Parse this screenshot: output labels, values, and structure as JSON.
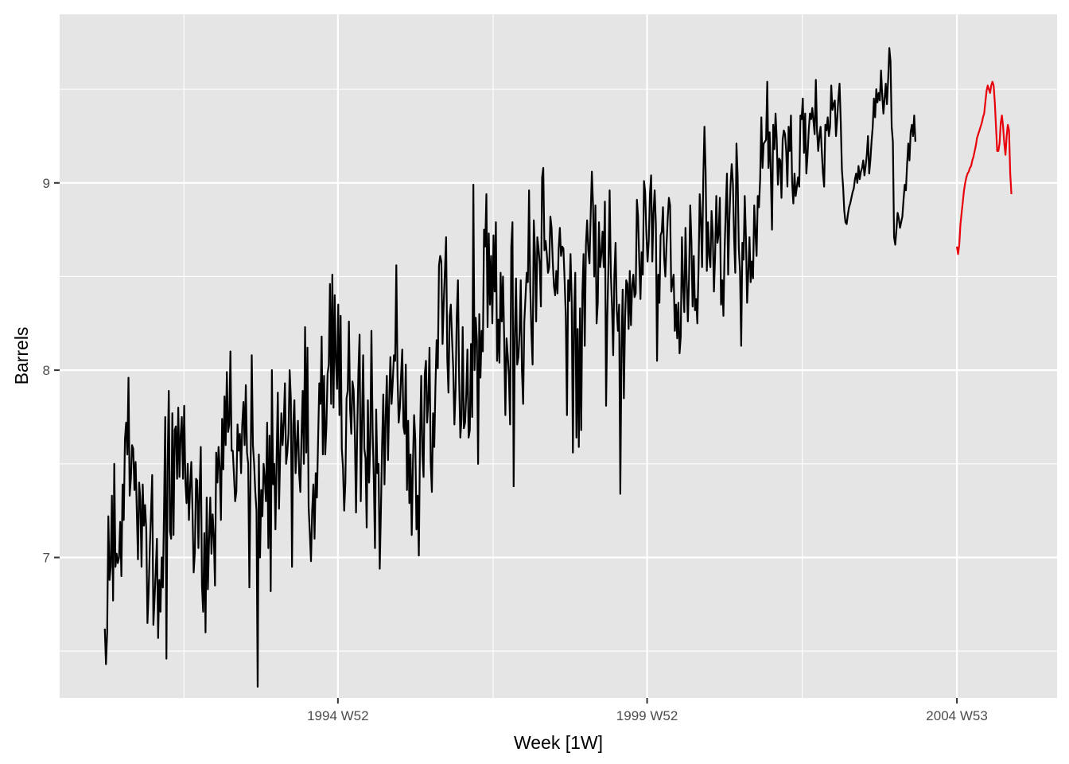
{
  "chart_data": {
    "type": "line",
    "title": "",
    "xlabel": "Week [1W]",
    "ylabel": "Barrels",
    "x_ticks": [
      {
        "label": "1994 W52",
        "year": 1994.99
      },
      {
        "label": "1999 W52",
        "year": 1999.99
      },
      {
        "label": "2004 W53",
        "year": 2005.0
      }
    ],
    "x_minor_ticks": [
      1992.5,
      1997.5,
      2002.5
    ],
    "y_ticks": [
      7,
      8,
      9
    ],
    "y_minor_ticks": [
      6.5,
      7.5,
      8.5,
      9.5
    ],
    "xlim": [
      1990.49,
      2006.62
    ],
    "ylim": [
      6.25,
      9.9
    ],
    "grid": true,
    "background": "#e5e5e5",
    "series": [
      {
        "color": "#000000",
        "x_start": 1991.22,
        "x_step": 0.019165,
        "values": [
          6.62,
          6.43,
          6.6,
          7.22,
          6.88,
          6.95,
          7.33,
          6.77,
          7.5,
          6.95,
          7.02,
          6.97,
          7.0,
          7.19,
          6.9,
          7.39,
          7.2,
          7.63,
          7.72,
          7.55,
          7.96,
          7.33,
          7.42,
          7.6,
          7.58,
          7.36,
          7.51,
          7.25,
          6.99,
          7.4,
          7.31,
          6.95,
          7.39,
          7.17,
          7.28,
          7.15,
          6.65,
          6.82,
          7.05,
          7.24,
          7.44,
          6.64,
          6.78,
          6.93,
          7.1,
          6.57,
          6.88,
          6.71,
          7.0,
          6.84,
          7.26,
          7.75,
          6.46,
          7.48,
          7.89,
          7.14,
          7.1,
          7.77,
          7.12,
          7.68,
          7.7,
          7.42,
          7.8,
          7.43,
          7.65,
          7.75,
          7.42,
          7.81,
          7.4,
          7.29,
          7.5,
          7.2,
          7.38,
          7.51,
          7.25,
          6.92,
          7.03,
          7.42,
          7.41,
          7.05,
          7.36,
          7.59,
          6.85,
          6.71,
          7.13,
          6.6,
          7.32,
          6.83,
          7.1,
          7.32,
          7.02,
          7.23,
          7.11,
          6.85,
          7.56,
          7.4,
          7.59,
          7.48,
          7.2,
          7.74,
          7.47,
          7.86,
          7.6,
          7.99,
          7.67,
          7.71,
          8.1,
          7.57,
          7.57,
          7.44,
          7.3,
          7.35,
          7.71,
          7.57,
          7.66,
          7.45,
          7.71,
          7.83,
          7.6,
          7.92,
          7.56,
          7.5,
          6.84,
          7.45,
          8.08,
          7.6,
          7.5,
          7.35,
          7.25,
          6.31,
          7.55,
          7.0,
          7.36,
          7.22,
          7.5,
          7.42,
          7.3,
          7.72,
          7.05,
          7.65,
          6.82,
          8.0,
          7.39,
          7.5,
          7.15,
          7.53,
          7.88,
          7.26,
          7.55,
          7.77,
          7.6,
          7.72,
          7.93,
          7.5,
          7.56,
          7.66,
          8.0,
          7.85,
          6.95,
          7.71,
          7.84,
          7.45,
          7.6,
          7.73,
          7.45,
          7.35,
          7.65,
          7.89,
          7.5,
          8.23,
          7.56,
          8.12,
          7.27,
          7.13,
          6.98,
          7.25,
          7.39,
          7.1,
          7.45,
          7.32,
          7.63,
          7.93,
          7.82,
          8.18,
          7.55,
          7.97,
          7.55,
          7.7,
          7.98,
          8.03,
          8.46,
          7.82,
          8.51,
          7.8,
          8.4,
          8.05,
          7.9,
          8.35,
          7.76,
          8.29,
          7.58,
          7.48,
          7.25,
          7.4,
          7.85,
          7.89,
          8.26,
          7.79,
          7.66,
          7.94,
          7.89,
          7.66,
          7.24,
          7.68,
          7.99,
          8.19,
          7.3,
          7.71,
          8.08,
          7.58,
          7.53,
          7.16,
          7.84,
          7.4,
          7.61,
          8.21,
          7.68,
          7.42,
          7.05,
          7.79,
          7.45,
          7.5,
          6.94,
          7.25,
          7.6,
          7.87,
          7.39,
          7.75,
          7.97,
          7.52,
          7.84,
          8.07,
          7.82,
          7.94,
          8.08,
          8.05,
          8.56,
          7.97,
          7.72,
          7.8,
          7.97,
          8.11,
          7.7,
          7.66,
          8.03,
          7.36,
          7.73,
          7.29,
          7.55,
          7.12,
          7.5,
          7.76,
          7.63,
          7.15,
          7.33,
          7.01,
          7.63,
          7.97,
          7.55,
          7.43,
          7.98,
          8.05,
          7.72,
          7.84,
          8.12,
          7.51,
          7.35,
          7.77,
          7.59,
          7.91,
          8.16,
          8.01,
          8.56,
          8.61,
          8.58,
          8.14,
          8.36,
          8.53,
          8.71,
          8.06,
          7.88,
          8.29,
          8.35,
          8.17,
          8.01,
          7.71,
          7.9,
          8.29,
          8.48,
          7.95,
          7.64,
          7.74,
          8.23,
          7.69,
          7.72,
          7.87,
          8.11,
          7.64,
          7.68,
          8.14,
          7.75,
          8.99,
          8.0,
          8.28,
          8.16,
          7.5,
          8.3,
          7.96,
          8.21,
          8.1,
          8.75,
          8.66,
          8.94,
          8.23,
          8.73,
          8.35,
          8.61,
          8.25,
          8.72,
          8.42,
          8.79,
          8.05,
          8.27,
          8.04,
          8.52,
          8.26,
          8.5,
          8.17,
          7.76,
          8.17,
          8.08,
          7.97,
          7.71,
          8.66,
          8.79,
          7.38,
          8.18,
          8.49,
          8.03,
          8.07,
          8.2,
          8.48,
          8.0,
          7.82,
          8.26,
          8.39,
          8.52,
          8.47,
          8.96,
          8.44,
          8.2,
          8.03,
          8.8,
          8.63,
          8.26,
          8.71,
          8.65,
          8.57,
          8.34,
          9.03,
          9.08,
          8.64,
          8.69,
          8.62,
          8.52,
          8.55,
          8.82,
          8.76,
          8.58,
          8.45,
          8.4,
          8.53,
          8.41,
          8.65,
          8.76,
          8.61,
          8.66,
          8.65,
          8.48,
          8.29,
          7.76,
          8.48,
          8.37,
          8.62,
          8.37,
          7.56,
          8.3,
          8.52,
          7.64,
          8.22,
          7.59,
          8.33,
          7.68,
          8.41,
          8.62,
          8.13,
          8.67,
          8.8,
          8.64,
          8.57,
          8.83,
          9.06,
          8.88,
          8.5,
          8.88,
          8.25,
          8.36,
          8.79,
          8.55,
          8.62,
          8.74,
          8.55,
          8.9,
          7.81,
          8.28,
          8.56,
          8.96,
          8.52,
          8.34,
          8.08,
          8.51,
          8.68,
          8.32,
          8.21,
          8.35,
          7.34,
          8.12,
          8.43,
          7.85,
          8.27,
          8.48,
          8.46,
          8.22,
          8.53,
          8.24,
          8.45,
          8.51,
          8.39,
          8.41,
          8.91,
          8.82,
          8.58,
          8.38,
          8.63,
          8.51,
          9.01,
          8.95,
          8.73,
          8.58,
          8.69,
          8.94,
          9.04,
          8.58,
          8.84,
          8.96,
          8.78,
          8.05,
          8.51,
          8.36,
          8.72,
          8.74,
          8.87,
          8.6,
          8.5,
          8.67,
          8.81,
          8.92,
          8.88,
          8.42,
          8.47,
          8.51,
          8.21,
          8.35,
          8.17,
          8.36,
          8.09,
          8.18,
          8.71,
          8.45,
          8.31,
          8.76,
          8.48,
          8.26,
          8.49,
          8.88,
          8.69,
          8.34,
          8.61,
          8.32,
          8.38,
          8.25,
          8.54,
          8.94,
          8.81,
          8.55,
          9.02,
          9.3,
          9.06,
          8.53,
          8.79,
          8.61,
          8.55,
          8.85,
          8.73,
          8.42,
          8.61,
          8.93,
          8.68,
          8.73,
          8.92,
          8.35,
          8.48,
          8.29,
          8.64,
          8.86,
          9.05,
          8.51,
          8.8,
          8.99,
          9.1,
          9.0,
          8.71,
          8.52,
          9.21,
          9.04,
          8.65,
          8.53,
          8.13,
          8.68,
          8.59,
          8.93,
          8.71,
          8.36,
          8.52,
          8.71,
          8.47,
          8.58,
          8.49,
          8.88,
          8.74,
          8.61,
          8.93,
          8.87,
          9.02,
          9.35,
          9.08,
          9.21,
          9.22,
          9.23,
          9.54,
          9.08,
          9.27,
          9.05,
          8.75,
          9.31,
          9.18,
          9.37,
          9.23,
          8.99,
          9.13,
          9.12,
          8.92,
          9.23,
          9.28,
          9.26,
          9.17,
          8.98,
          9.3,
          9.17,
          9.36,
          9.0,
          8.89,
          9.05,
          8.93,
          8.98,
          9.03,
          8.98,
          9.36,
          9.34,
          9.45,
          9.16,
          9.37,
          9.05,
          9.15,
          9.28,
          9.37,
          9.34,
          9.4,
          9.33,
          9.26,
          9.55,
          9.28,
          9.17,
          9.25,
          9.3,
          9.17,
          9.05,
          8.98,
          9.31,
          9.28,
          9.35,
          9.25,
          9.3,
          9.52,
          9.39,
          9.42,
          9.44,
          9.25,
          9.34,
          9.45,
          9.53,
          9.33,
          9.07,
          8.98,
          8.85,
          8.79,
          8.78,
          8.83,
          8.87,
          8.89,
          8.92,
          8.95,
          8.97,
          9.02,
          9.05,
          9.0,
          9.09,
          9.02,
          9.06,
          9.08,
          9.12,
          9.04,
          9.09,
          9.15,
          9.25,
          9.05,
          9.12,
          9.22,
          9.3,
          9.45,
          9.35,
          9.5,
          9.43,
          9.48,
          9.44,
          9.6,
          9.47,
          9.37,
          9.45,
          9.53,
          9.42,
          9.55,
          9.72,
          9.65,
          9.3,
          9.22,
          8.71,
          8.67,
          8.75,
          8.84,
          8.81,
          8.76,
          8.79,
          8.82,
          8.91,
          8.99,
          8.96,
          9.1,
          9.21,
          9.12,
          9.27,
          9.31,
          9.25,
          9.36,
          9.22
        ]
      },
      {
        "color": "#e8000b",
        "x_start": 2005.0,
        "x_step": 0.019165,
        "values": [
          8.66,
          8.62,
          8.67,
          8.78,
          8.84,
          8.9,
          8.96,
          9.0,
          9.03,
          9.05,
          9.06,
          9.08,
          9.09,
          9.12,
          9.14,
          9.17,
          9.2,
          9.24,
          9.26,
          9.28,
          9.3,
          9.32,
          9.35,
          9.37,
          9.43,
          9.49,
          9.52,
          9.5,
          9.48,
          9.52,
          9.54,
          9.52,
          9.43,
          9.3,
          9.17,
          9.17,
          9.21,
          9.32,
          9.36,
          9.3,
          9.21,
          9.15,
          9.25,
          9.31,
          9.28,
          9.05,
          8.94
        ]
      }
    ]
  }
}
